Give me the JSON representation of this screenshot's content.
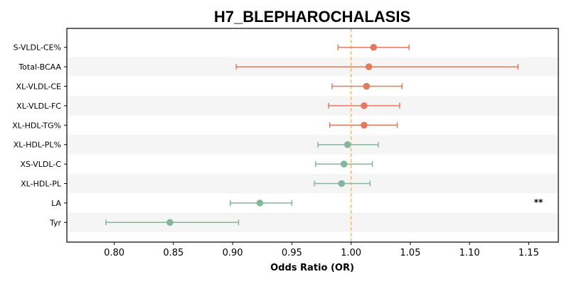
{
  "chart_data": {
    "type": "forest",
    "title": "H7_BLEPHAROCHALASIS",
    "xlabel": "Odds Ratio (OR)",
    "xlim": [
      0.76,
      1.175
    ],
    "xticks": [
      "0.80",
      "0.85",
      "0.90",
      "0.95",
      "1.00",
      "1.05",
      "1.10",
      "1.15"
    ],
    "reference_line": 1.0,
    "colors": {
      "positive": "#E07B60",
      "negative": "#85B59C",
      "reference": "#F5B86B",
      "band": "#F5F5F5"
    },
    "rows": [
      {
        "label": "S-VLDL-CE%",
        "or": 1.019,
        "lower": 0.989,
        "upper": 1.049,
        "sig": ""
      },
      {
        "label": "Total-BCAA",
        "or": 1.015,
        "lower": 0.903,
        "upper": 1.141,
        "sig": ""
      },
      {
        "label": "XL-VLDL-CE",
        "or": 1.013,
        "lower": 0.984,
        "upper": 1.043,
        "sig": ""
      },
      {
        "label": "XL-VLDL-FC",
        "or": 1.011,
        "lower": 0.981,
        "upper": 1.041,
        "sig": ""
      },
      {
        "label": "XL-HDL-TG%",
        "or": 1.011,
        "lower": 0.982,
        "upper": 1.039,
        "sig": ""
      },
      {
        "label": "XL-HDL-PL%",
        "or": 0.997,
        "lower": 0.972,
        "upper": 1.023,
        "sig": ""
      },
      {
        "label": "XS-VLDL-C",
        "or": 0.994,
        "lower": 0.97,
        "upper": 1.018,
        "sig": ""
      },
      {
        "label": "XL-HDL-PL",
        "or": 0.992,
        "lower": 0.969,
        "upper": 1.016,
        "sig": ""
      },
      {
        "label": "LA",
        "or": 0.923,
        "lower": 0.898,
        "upper": 0.95,
        "sig": "**"
      },
      {
        "label": "Tyr",
        "or": 0.847,
        "lower": 0.793,
        "upper": 0.905,
        "sig": ""
      }
    ]
  }
}
